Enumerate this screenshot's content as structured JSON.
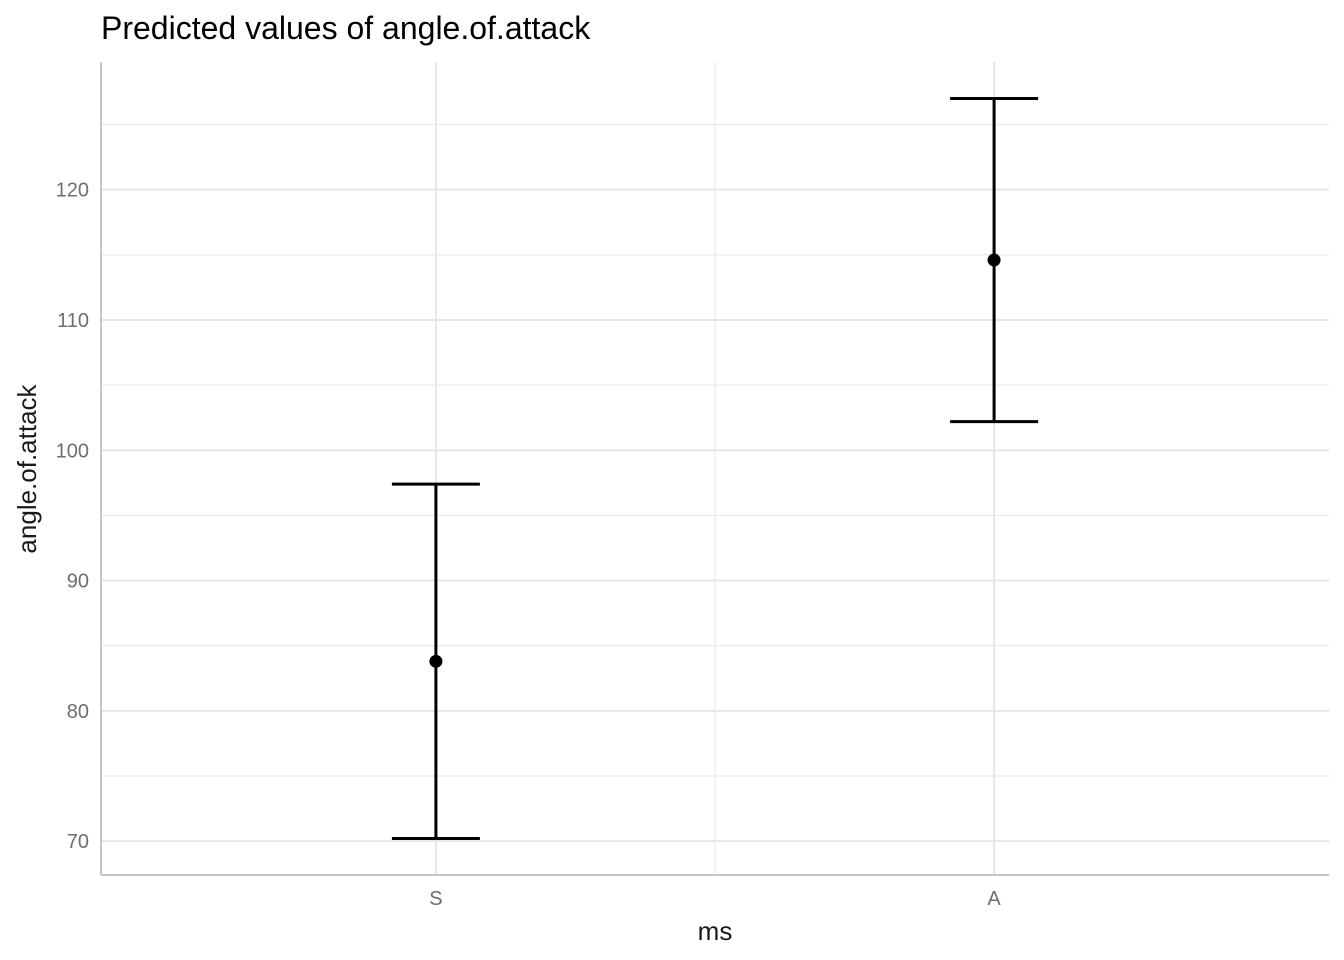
{
  "chart_data": {
    "type": "scatter",
    "title": "Predicted values of angle.of.attack",
    "xlabel": "ms",
    "ylabel": "angle.of.attack",
    "categories": [
      "S",
      "A"
    ],
    "points": [
      {
        "category": "S",
        "value": 83.8,
        "lower": 70.2,
        "upper": 97.4
      },
      {
        "category": "A",
        "value": 114.6,
        "lower": 102.2,
        "upper": 127.0
      }
    ],
    "ylim": [
      67.4,
      129.8
    ],
    "yticks": [
      70,
      80,
      90,
      100,
      110,
      120
    ],
    "yticks_minor": [
      75,
      85,
      95,
      105,
      115,
      125
    ],
    "grid": true,
    "legend": "none",
    "colors": {
      "marks": "#000000",
      "grid": "#ebebeb",
      "axis": "#b3b3b3"
    }
  }
}
